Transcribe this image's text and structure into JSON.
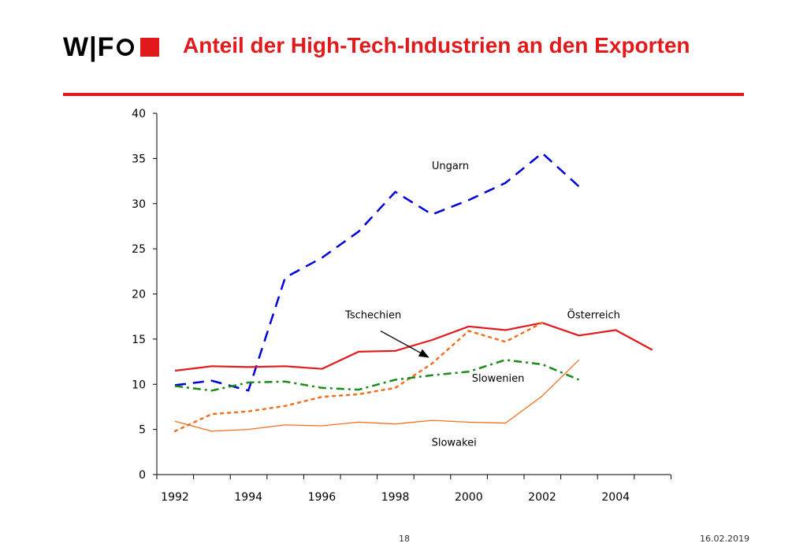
{
  "header": {
    "logo_text": "W|F",
    "title": "Anteil der High-Tech-Industrien an den Exporten"
  },
  "footer": {
    "page_number": "18",
    "date": "16.02.2019"
  },
  "colors": {
    "accent": "#e31a1c",
    "ungarn": "#0000dd",
    "oesterreich": "#e31a1c",
    "tschechien": "#f07020",
    "slowenien": "#1a8c1a",
    "slowakei": "#f07020"
  },
  "chart_data": {
    "type": "line",
    "title": "",
    "xlabel": "",
    "ylabel": "",
    "ylim": [
      0,
      40
    ],
    "yticks": [
      0,
      5,
      10,
      15,
      20,
      25,
      30,
      35,
      40
    ],
    "xticks": [
      1992,
      1994,
      1996,
      1998,
      2000,
      2002,
      2004
    ],
    "grid": false,
    "series": [
      {
        "name": "Ungarn",
        "style": "dashed",
        "color": "#0000dd",
        "x": [
          1992,
          1993,
          1994,
          1995,
          1996,
          1997,
          1998,
          1999,
          2000,
          2001,
          2002,
          2003
        ],
        "values": [
          9.9,
          10.4,
          9.3,
          21.8,
          24.0,
          26.9,
          31.3,
          28.8,
          30.4,
          32.3,
          35.6,
          31.9
        ]
      },
      {
        "name": "Österreich",
        "style": "solid",
        "color": "#e31a1c",
        "x": [
          1992,
          1993,
          1994,
          1995,
          1996,
          1997,
          1998,
          1999,
          2000,
          2001,
          2002,
          2003,
          2004,
          2005
        ],
        "values": [
          11.5,
          12.0,
          11.9,
          12.0,
          11.7,
          13.6,
          13.7,
          14.9,
          16.4,
          16.0,
          16.8,
          15.4,
          16.0,
          13.8
        ]
      },
      {
        "name": "Tschechien",
        "style": "dotted",
        "color": "#f07020",
        "x": [
          1992,
          1993,
          1994,
          1995,
          1996,
          1997,
          1998,
          1999,
          2000,
          2001,
          2002
        ],
        "values": [
          4.8,
          6.7,
          7.0,
          7.6,
          8.6,
          8.9,
          9.6,
          12.3,
          15.9,
          14.7,
          16.8
        ]
      },
      {
        "name": "Slowenien",
        "style": "dashdot",
        "color": "#1a8c1a",
        "x": [
          1992,
          1993,
          1994,
          1995,
          1996,
          1997,
          1998,
          1999,
          2000,
          2001,
          2002,
          2003
        ],
        "values": [
          9.8,
          9.3,
          10.2,
          10.3,
          9.6,
          9.4,
          10.5,
          11.0,
          11.4,
          12.7,
          12.2,
          10.5
        ]
      },
      {
        "name": "Slowakei",
        "style": "thin",
        "color": "#f07020",
        "x": [
          1992,
          1993,
          1994,
          1995,
          1996,
          1997,
          1998,
          1999,
          2000,
          2001,
          2002,
          2003
        ],
        "values": [
          5.9,
          4.8,
          5.0,
          5.5,
          5.4,
          5.8,
          5.6,
          6.0,
          5.8,
          5.7,
          8.7,
          12.7
        ]
      }
    ],
    "annotations": [
      {
        "text": "Ungarn",
        "x": 1999.5,
        "y": 33.8
      },
      {
        "text": "Tschechien",
        "x": 1997.4,
        "y": 17.3
      },
      {
        "text": "Österreich",
        "x": 2003.4,
        "y": 17.3
      },
      {
        "text": "Slowenien",
        "x": 2000.8,
        "y": 10.3
      },
      {
        "text": "Slowakei",
        "x": 1999.6,
        "y": 3.2
      }
    ],
    "arrow": {
      "from": [
        1997.6,
        15.9
      ],
      "to": [
        1998.9,
        13.0
      ]
    }
  }
}
